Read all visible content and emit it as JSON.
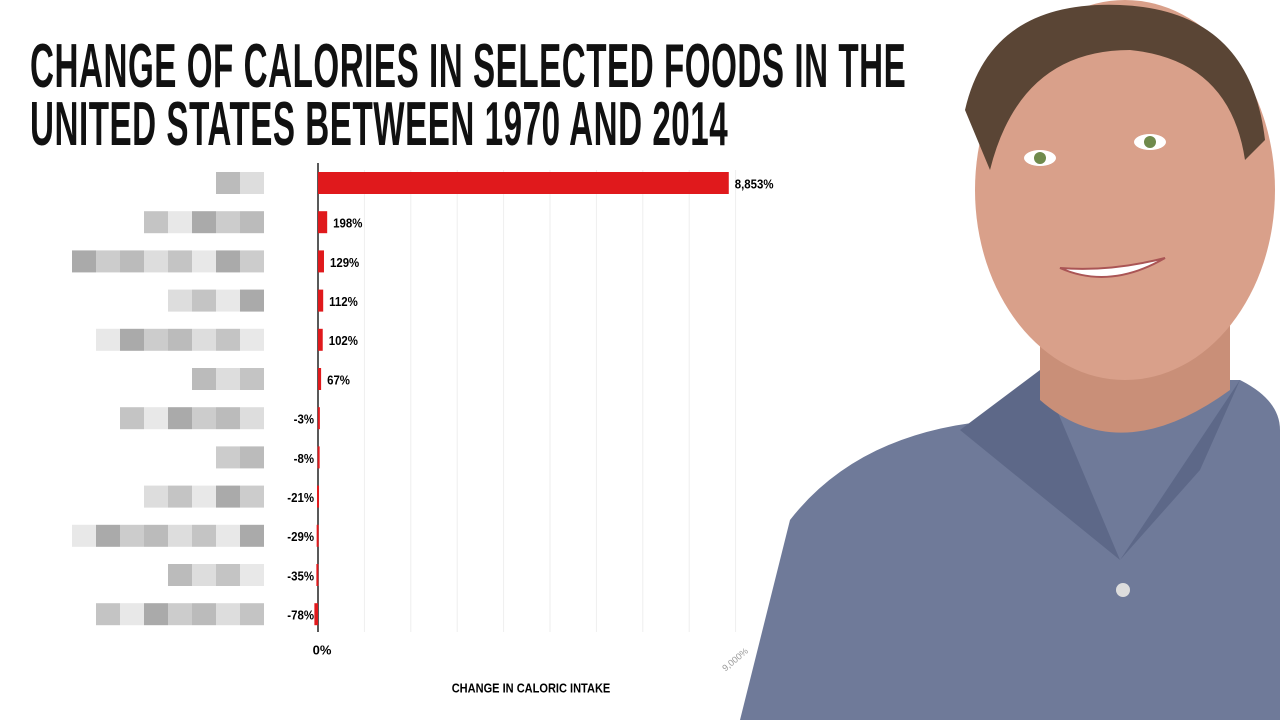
{
  "chart_data": {
    "type": "bar",
    "orientation": "horizontal",
    "title": "CHANGE OF CALORIES IN SELECTED FOODS IN THE UNITED STATES BETWEEN 1970 AND 2014",
    "x_label": "CHANGE IN CALORIC INTAKE",
    "categories": [
      null,
      null,
      null,
      null,
      null,
      null,
      null,
      null,
      null,
      null,
      null,
      null
    ],
    "values": [
      8853,
      198,
      129,
      112,
      102,
      67,
      -3,
      -8,
      -21,
      -29,
      -35,
      -78
    ],
    "value_labels": [
      "8,853%",
      "198%",
      "129%",
      "112%",
      "102%",
      "67%",
      "-3%",
      "-8%",
      "-21%",
      "-29%",
      "-35%",
      "-78%"
    ],
    "color": "#e0191c",
    "xlim": [
      0,
      10000
    ],
    "xticks": [
      {
        "value": 0,
        "label": "0%"
      },
      {
        "value": 9000,
        "label": "9,000%"
      }
    ],
    "xgrid": [
      1000,
      2000,
      3000,
      4000,
      5000,
      6000,
      7000,
      8000,
      9000
    ],
    "grid": true
  }
}
